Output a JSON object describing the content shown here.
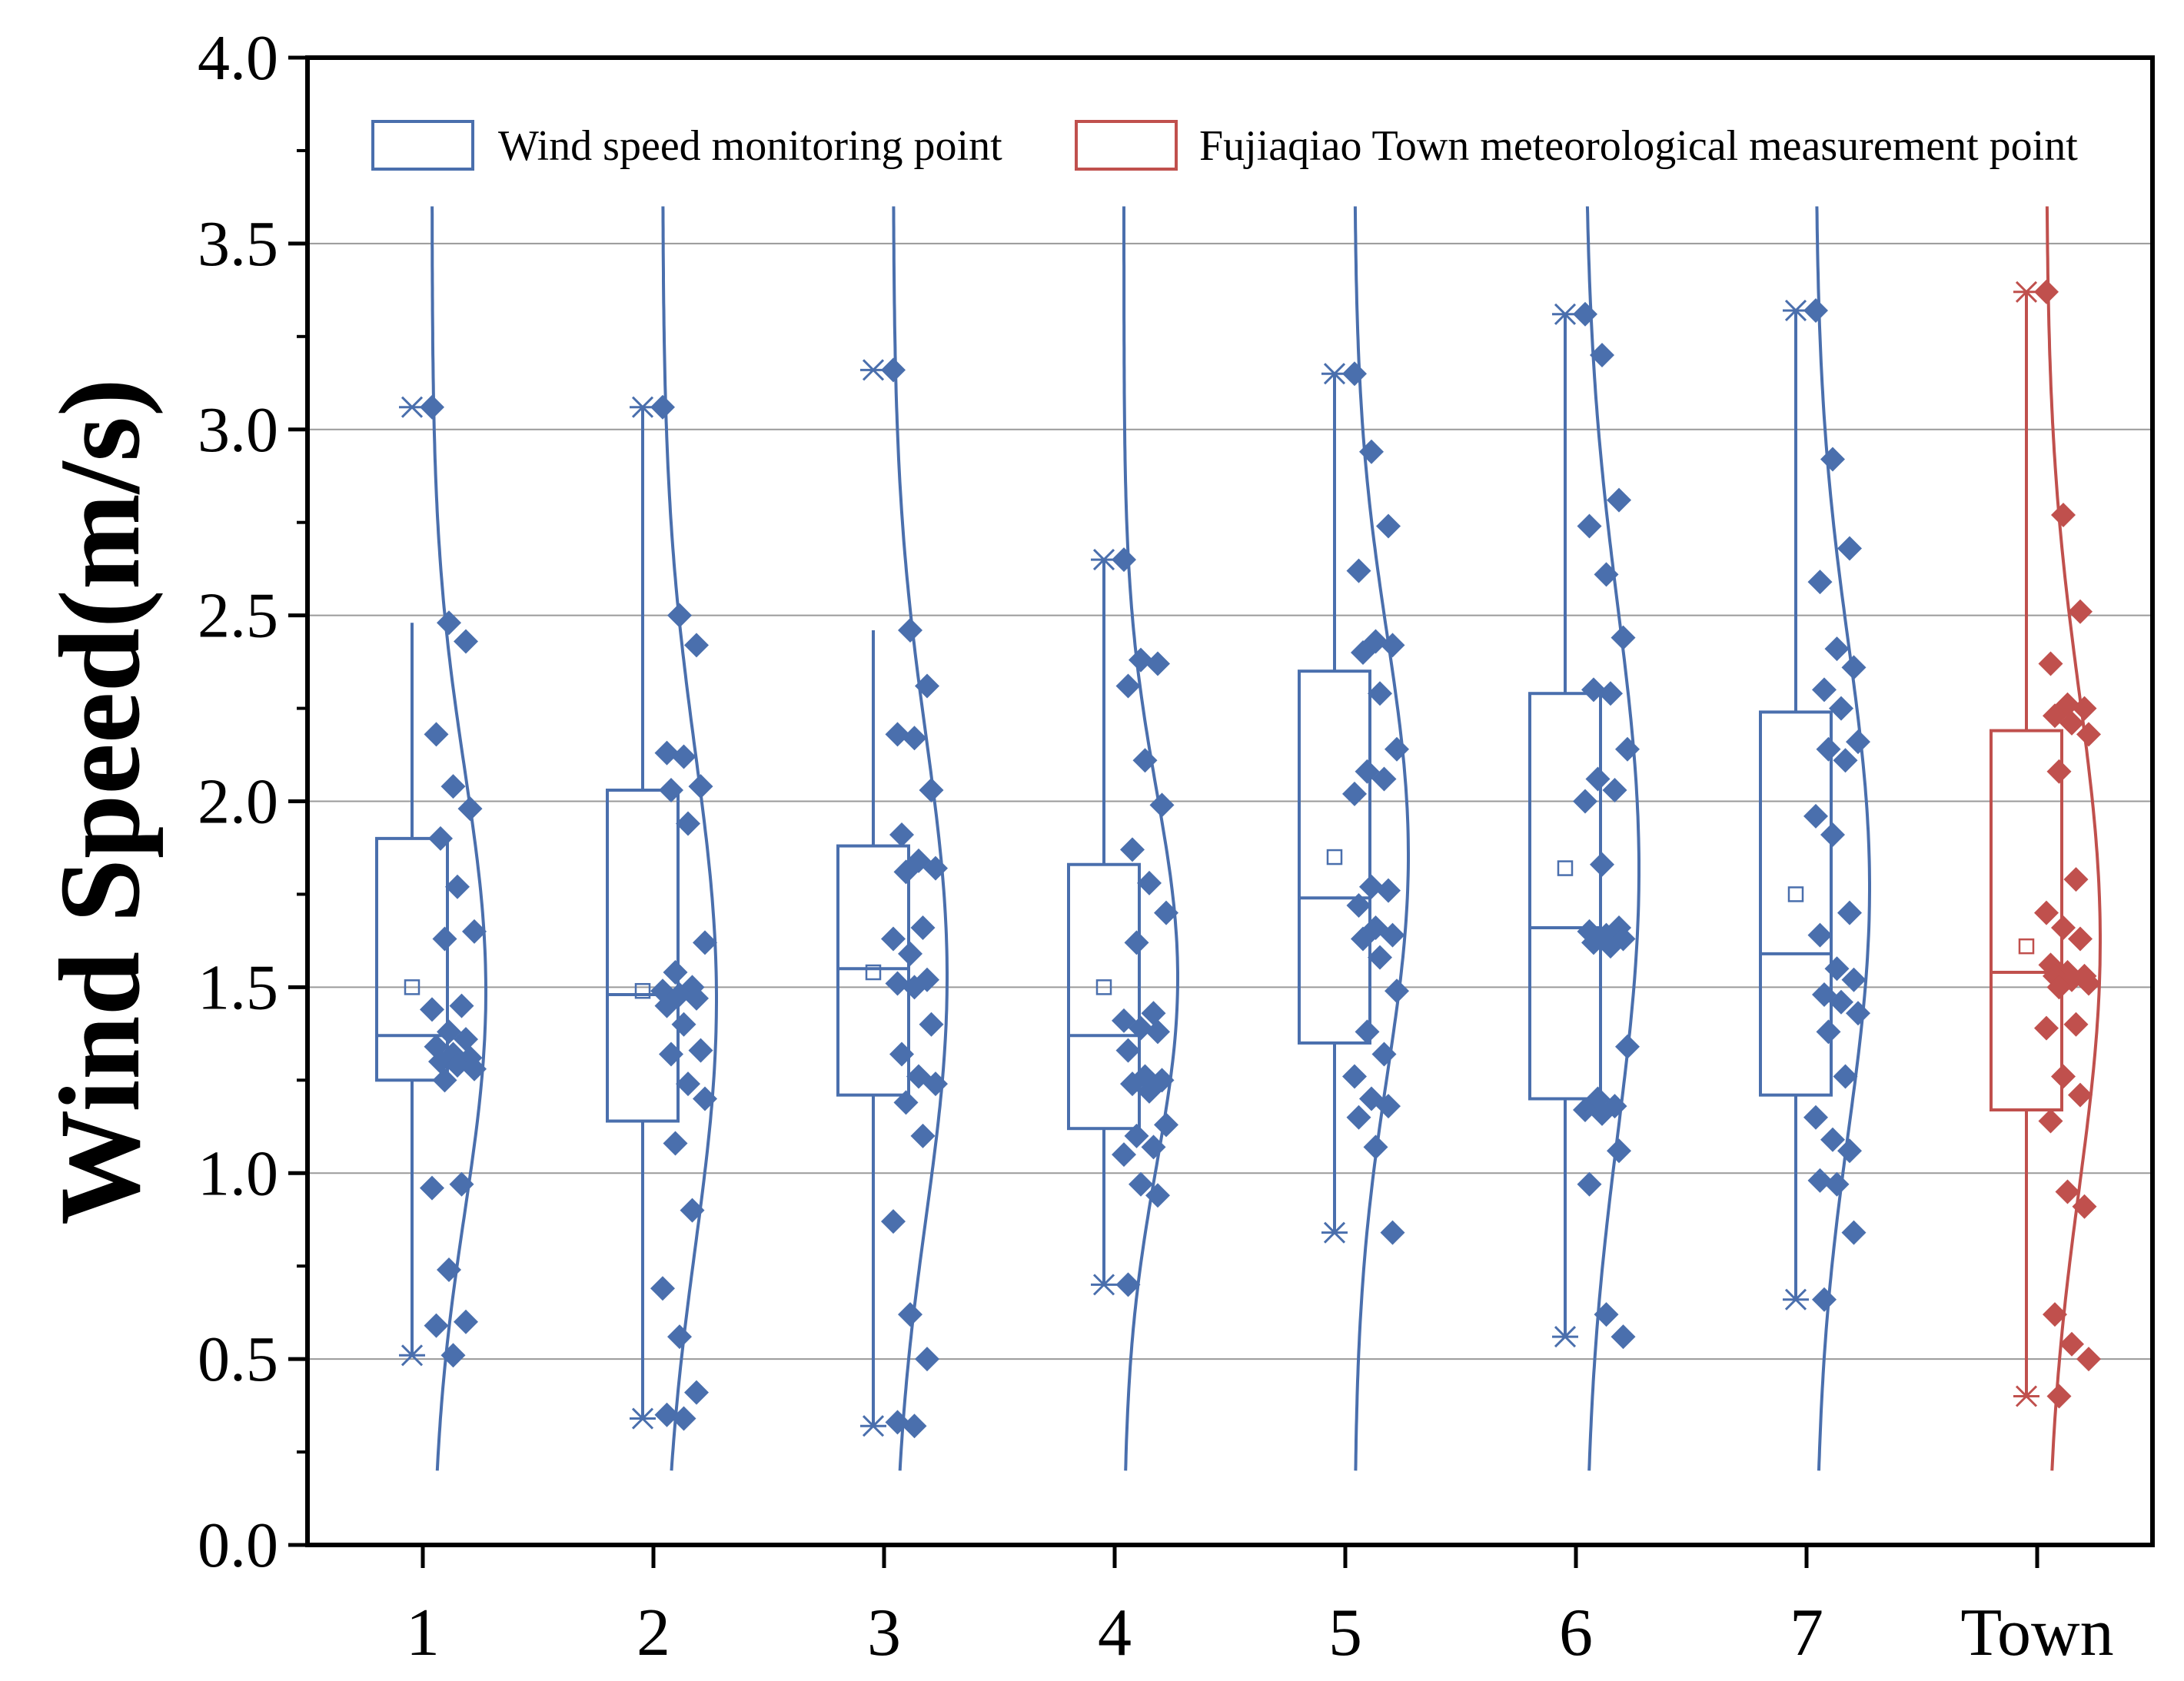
{
  "chart_data": {
    "type": "box",
    "title": "",
    "xlabel": "",
    "ylabel": "Wind Speed(m/s)",
    "ylim": [
      0.0,
      4.0
    ],
    "yticks": [
      "0.0",
      "0.5",
      "1.0",
      "1.5",
      "2.0",
      "2.5",
      "3.0",
      "3.5",
      "4.0"
    ],
    "grid": true,
    "legend_position": "top",
    "colors": {
      "monitoring": "#4a6fad",
      "town": "#c0504d"
    },
    "legend": [
      {
        "label": "Wind speed monitoring point",
        "color": "#4a6fad"
      },
      {
        "label": "Fujiaqiao Town meteorological measurement point",
        "color": "#c0504d"
      }
    ],
    "categories": [
      "1",
      "2",
      "3",
      "4",
      "5",
      "6",
      "7",
      "Town"
    ],
    "boxes": [
      {
        "category": "1",
        "group": "monitoring",
        "q1": 1.25,
        "median": 1.37,
        "q3": 1.9,
        "mean": 1.5,
        "whisker_low": 0.51,
        "whisker_high": 2.48,
        "min": 0.51,
        "max": 3.06,
        "points": [
          3.06,
          2.48,
          2.43,
          2.18,
          2.04,
          1.98,
          1.9,
          1.77,
          1.65,
          1.63,
          1.45,
          1.44,
          1.38,
          1.36,
          1.34,
          1.32,
          1.31,
          1.3,
          1.29,
          1.28,
          1.25,
          0.97,
          0.96,
          0.74,
          0.6,
          0.59,
          0.51
        ]
      },
      {
        "category": "2",
        "group": "monitoring",
        "q1": 1.14,
        "median": 1.48,
        "q3": 2.03,
        "mean": 1.49,
        "whisker_low": 0.34,
        "whisker_high": 3.06,
        "min": 0.34,
        "max": 3.06,
        "points": [
          3.06,
          2.5,
          2.42,
          2.13,
          2.12,
          2.04,
          2.03,
          1.94,
          1.62,
          1.54,
          1.5,
          1.49,
          1.48,
          1.47,
          1.45,
          1.4,
          1.33,
          1.32,
          1.24,
          1.2,
          1.08,
          0.9,
          0.69,
          0.56,
          0.41,
          0.35,
          0.34
        ]
      },
      {
        "category": "3",
        "group": "monitoring",
        "q1": 1.21,
        "median": 1.55,
        "q3": 1.88,
        "mean": 1.54,
        "whisker_low": 0.32,
        "whisker_high": 2.46,
        "min": 0.32,
        "max": 3.16,
        "points": [
          3.16,
          2.46,
          2.31,
          2.18,
          2.17,
          2.03,
          1.91,
          1.84,
          1.82,
          1.81,
          1.66,
          1.63,
          1.59,
          1.52,
          1.51,
          1.5,
          1.4,
          1.32,
          1.26,
          1.24,
          1.19,
          1.1,
          0.87,
          0.62,
          0.5,
          0.33,
          0.32
        ]
      },
      {
        "category": "4",
        "group": "monitoring",
        "q1": 1.12,
        "median": 1.37,
        "q3": 1.83,
        "mean": 1.5,
        "whisker_low": 0.7,
        "whisker_high": 2.65,
        "min": 0.7,
        "max": 2.65,
        "points": [
          2.65,
          2.38,
          2.37,
          2.31,
          2.11,
          1.99,
          1.87,
          1.78,
          1.7,
          1.62,
          1.43,
          1.41,
          1.39,
          1.38,
          1.33,
          1.26,
          1.25,
          1.24,
          1.22,
          1.13,
          1.1,
          1.07,
          1.05,
          0.97,
          0.94,
          0.7
        ]
      },
      {
        "category": "5",
        "group": "monitoring",
        "q1": 1.35,
        "median": 1.74,
        "q3": 2.35,
        "mean": 1.85,
        "whisker_low": 0.84,
        "whisker_high": 3.15,
        "min": 0.84,
        "max": 3.15,
        "points": [
          3.15,
          2.94,
          2.74,
          2.62,
          2.43,
          2.42,
          2.4,
          2.29,
          2.14,
          2.08,
          2.06,
          2.02,
          1.77,
          1.76,
          1.72,
          1.66,
          1.64,
          1.63,
          1.58,
          1.49,
          1.38,
          1.32,
          1.26,
          1.2,
          1.18,
          1.15,
          1.07,
          0.84
        ]
      },
      {
        "category": "6",
        "group": "monitoring",
        "q1": 1.2,
        "median": 1.66,
        "q3": 2.29,
        "mean": 1.82,
        "whisker_low": 0.56,
        "whisker_high": 3.31,
        "min": 0.56,
        "max": 3.31,
        "points": [
          3.31,
          3.2,
          2.81,
          2.74,
          2.61,
          2.44,
          2.3,
          2.29,
          2.14,
          2.06,
          2.03,
          2.0,
          1.83,
          1.66,
          1.65,
          1.64,
          1.63,
          1.62,
          1.61,
          1.34,
          1.2,
          1.18,
          1.17,
          1.16,
          1.06,
          0.97,
          0.62,
          0.56
        ]
      },
      {
        "category": "7",
        "group": "monitoring",
        "q1": 1.21,
        "median": 1.59,
        "q3": 2.24,
        "mean": 1.75,
        "whisker_low": 0.66,
        "whisker_high": 3.32,
        "min": 0.66,
        "max": 3.32,
        "points": [
          3.32,
          2.92,
          2.68,
          2.59,
          2.41,
          2.36,
          2.3,
          2.25,
          2.16,
          2.14,
          2.11,
          1.96,
          1.91,
          1.7,
          1.64,
          1.55,
          1.52,
          1.48,
          1.46,
          1.43,
          1.38,
          1.26,
          1.15,
          1.09,
          1.06,
          0.98,
          0.97,
          0.84,
          0.66
        ]
      },
      {
        "category": "Town",
        "group": "town",
        "q1": 1.17,
        "median": 1.54,
        "q3": 2.19,
        "mean": 1.61,
        "whisker_low": 0.4,
        "whisker_high": 3.37,
        "min": 0.4,
        "max": 3.37,
        "points": [
          3.37,
          2.77,
          2.51,
          2.37,
          2.26,
          2.25,
          2.23,
          2.21,
          2.18,
          2.08,
          1.79,
          1.7,
          1.66,
          1.63,
          1.56,
          1.54,
          1.53,
          1.53,
          1.52,
          1.51,
          1.5,
          1.4,
          1.39,
          1.26,
          1.21,
          1.14,
          0.95,
          0.91,
          0.62,
          0.54,
          0.5,
          0.4
        ]
      }
    ]
  }
}
